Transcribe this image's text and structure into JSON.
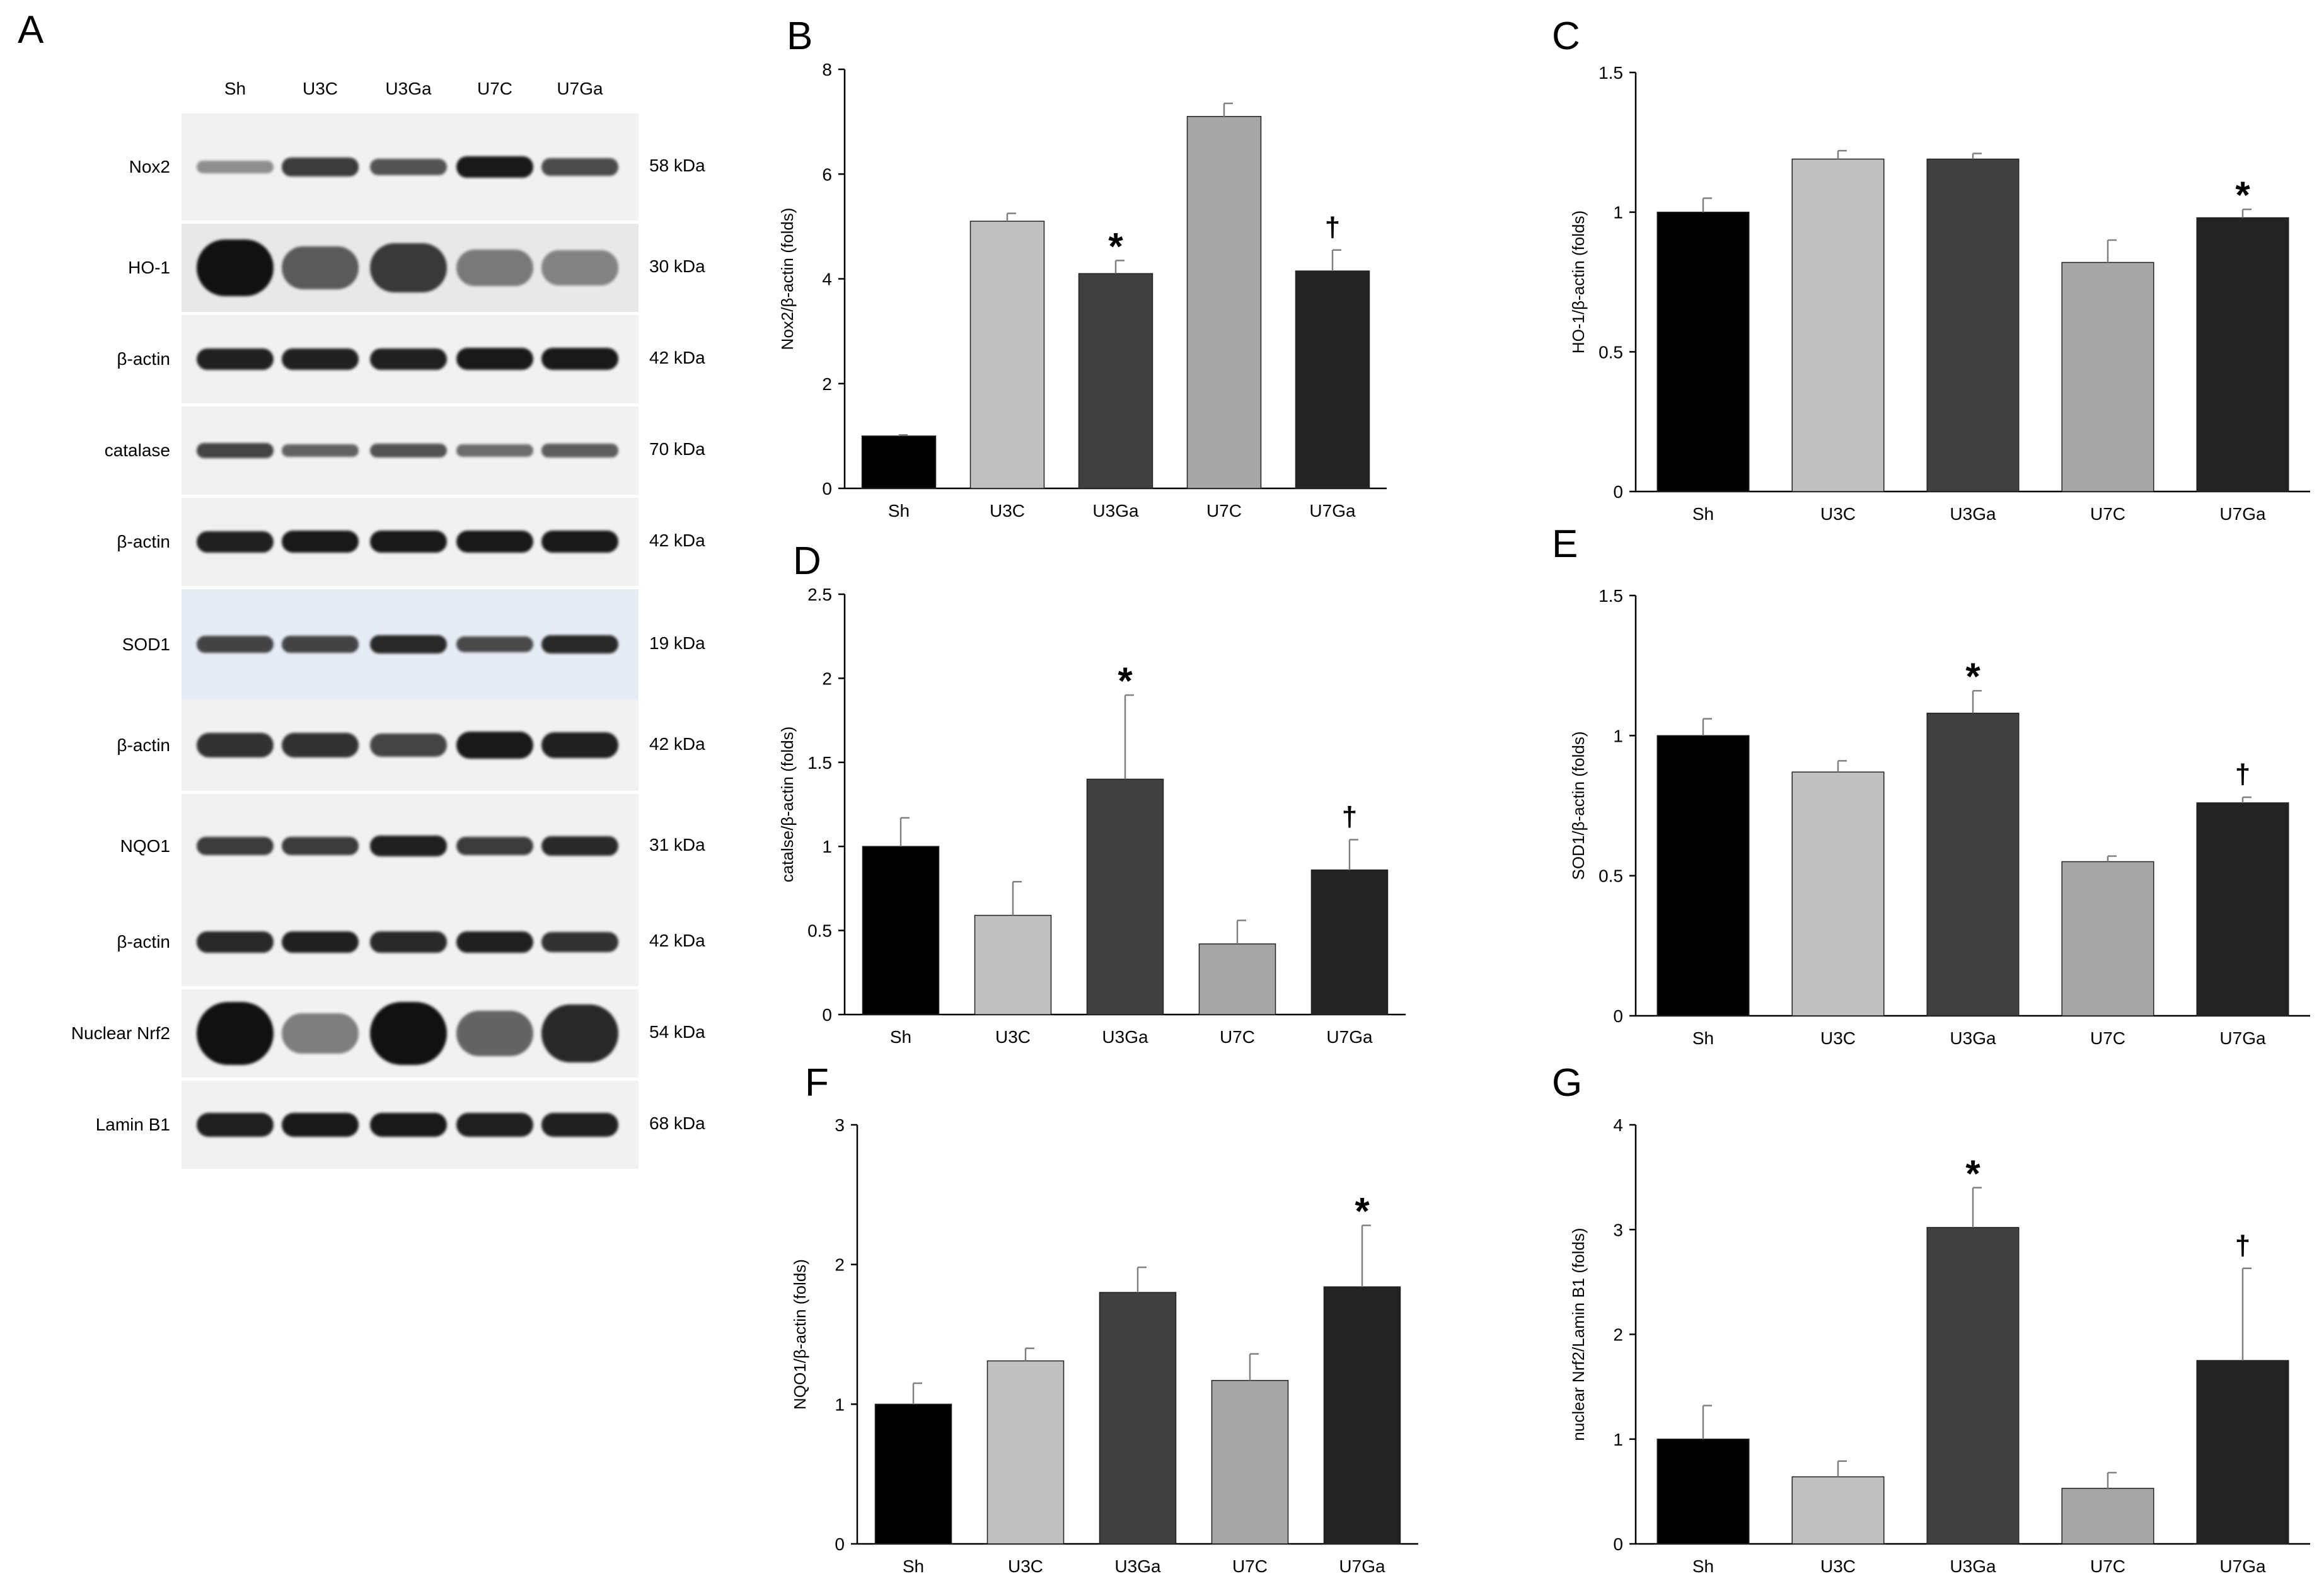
{
  "panel_letters": {
    "A": "A",
    "B": "B",
    "C": "C",
    "D": "D",
    "E": "E",
    "F": "F",
    "G": "G"
  },
  "blot": {
    "lanes": [
      "Sh",
      "U3C",
      "U3Ga",
      "U7C",
      "U7Ga"
    ],
    "rows": [
      {
        "protein": "Nox2",
        "kda": "58 kDa",
        "intensity": [
          0.25,
          0.75,
          0.6,
          0.95,
          0.65
        ]
      },
      {
        "protein": "HO-1",
        "kda": "30 kDa",
        "intensity": [
          1.0,
          0.55,
          0.75,
          0.35,
          0.3
        ]
      },
      {
        "protein": "β-actin",
        "kda": "42 kDa",
        "intensity": [
          0.9,
          0.9,
          0.9,
          0.95,
          0.95
        ]
      },
      {
        "protein": "catalase",
        "kda": "70 kDa",
        "intensity": [
          0.7,
          0.5,
          0.6,
          0.45,
          0.55
        ]
      },
      {
        "protein": "β-actin",
        "kda": "42 kDa",
        "intensity": [
          0.9,
          0.95,
          0.95,
          0.95,
          0.95
        ]
      },
      {
        "protein": "SOD1",
        "kda": "19 kDa",
        "intensity": [
          0.7,
          0.7,
          0.85,
          0.65,
          0.85
        ]
      },
      {
        "protein": "β-actin",
        "kda": "42 kDa",
        "intensity": [
          0.8,
          0.8,
          0.7,
          0.95,
          0.9
        ]
      },
      {
        "protein": "NQO1",
        "kda": "31 kDa",
        "intensity": [
          0.75,
          0.75,
          0.9,
          0.75,
          0.85
        ]
      },
      {
        "protein": "β-actin",
        "kda": "42 kDa",
        "intensity": [
          0.85,
          0.9,
          0.85,
          0.9,
          0.8
        ]
      },
      {
        "protein": "Nuclear Nrf2",
        "kda": "54 kDa",
        "intensity": [
          1.0,
          0.35,
          1.0,
          0.5,
          0.85
        ]
      },
      {
        "protein": "Lamin B1",
        "kda": "68 kDa",
        "intensity": [
          0.9,
          0.95,
          0.95,
          0.9,
          0.9
        ]
      }
    ]
  },
  "colors": {
    "Sh": "#000000",
    "U3C": "#c0c0c0",
    "U3Ga": "#404040",
    "U7C": "#a6a6a6",
    "U7Ga": "#232323",
    "errorbar": "#808080"
  },
  "chart_data": [
    {
      "panel": "B",
      "type": "bar",
      "categories": [
        "Sh",
        "U3C",
        "U3Ga",
        "U7C",
        "U7Ga"
      ],
      "values": [
        1.0,
        5.1,
        4.1,
        7.1,
        4.15
      ],
      "errors": [
        0.02,
        0.15,
        0.25,
        0.25,
        0.4
      ],
      "ylabel": "Nox2/β-actin (folds)",
      "ylim": [
        0,
        8
      ],
      "yticks": [
        "0",
        "2",
        "4",
        "6",
        "8"
      ],
      "annotations": [
        "",
        "",
        "*",
        "",
        "†"
      ]
    },
    {
      "panel": "C",
      "type": "bar",
      "categories": [
        "Sh",
        "U3C",
        "U3Ga",
        "U7C",
        "U7Ga"
      ],
      "values": [
        1.0,
        1.19,
        1.19,
        0.82,
        0.98
      ],
      "errors": [
        0.05,
        0.03,
        0.02,
        0.08,
        0.03
      ],
      "ylabel": "HO-1/β-actin (folds)",
      "ylim": [
        0,
        1.5
      ],
      "yticks": [
        "0",
        "0.5",
        "1",
        "1.5"
      ],
      "annotations": [
        "",
        "",
        "",
        "",
        "*"
      ]
    },
    {
      "panel": "D",
      "type": "bar",
      "categories": [
        "Sh",
        "U3C",
        "U3Ga",
        "U7C",
        "U7Ga"
      ],
      "values": [
        1.0,
        0.59,
        1.4,
        0.42,
        0.86
      ],
      "errors": [
        0.17,
        0.2,
        0.5,
        0.14,
        0.18
      ],
      "ylabel": "catalse/β-actin (folds)",
      "ylim": [
        0,
        2.5
      ],
      "yticks": [
        "0",
        "0.5",
        "1",
        "1.5",
        "2",
        "2.5"
      ],
      "annotations": [
        "",
        "",
        "*",
        "",
        "†"
      ]
    },
    {
      "panel": "E",
      "type": "bar",
      "categories": [
        "Sh",
        "U3C",
        "U3Ga",
        "U7C",
        "U7Ga"
      ],
      "values": [
        1.0,
        0.87,
        1.08,
        0.55,
        0.76
      ],
      "errors": [
        0.06,
        0.04,
        0.08,
        0.02,
        0.02
      ],
      "ylabel": "SOD1/β-actin (folds)",
      "ylim": [
        0,
        1.5
      ],
      "yticks": [
        "0",
        "0.5",
        "1",
        "1.5"
      ],
      "annotations": [
        "",
        "",
        "*",
        "",
        "†"
      ]
    },
    {
      "panel": "F",
      "type": "bar",
      "categories": [
        "Sh",
        "U3C",
        "U3Ga",
        "U7C",
        "U7Ga"
      ],
      "values": [
        1.0,
        1.31,
        1.8,
        1.17,
        1.84
      ],
      "errors": [
        0.15,
        0.09,
        0.18,
        0.19,
        0.44
      ],
      "ylabel": "NQO1/β-actin (folds)",
      "ylim": [
        0,
        3
      ],
      "yticks": [
        "0",
        "1",
        "2",
        "3"
      ],
      "annotations": [
        "",
        "",
        "",
        "",
        "*"
      ]
    },
    {
      "panel": "G",
      "type": "bar",
      "categories": [
        "Sh",
        "U3C",
        "U3Ga",
        "U7C",
        "U7Ga"
      ],
      "values": [
        1.0,
        0.64,
        3.02,
        0.53,
        1.75
      ],
      "errors": [
        0.32,
        0.15,
        0.38,
        0.15,
        0.88
      ],
      "ylabel": "nuclear Nrf2/Lamin B1 (folds)",
      "ylim": [
        0,
        4
      ],
      "yticks": [
        "0",
        "1",
        "2",
        "3",
        "4"
      ],
      "annotations": [
        "",
        "",
        "*",
        "",
        "†"
      ]
    }
  ]
}
